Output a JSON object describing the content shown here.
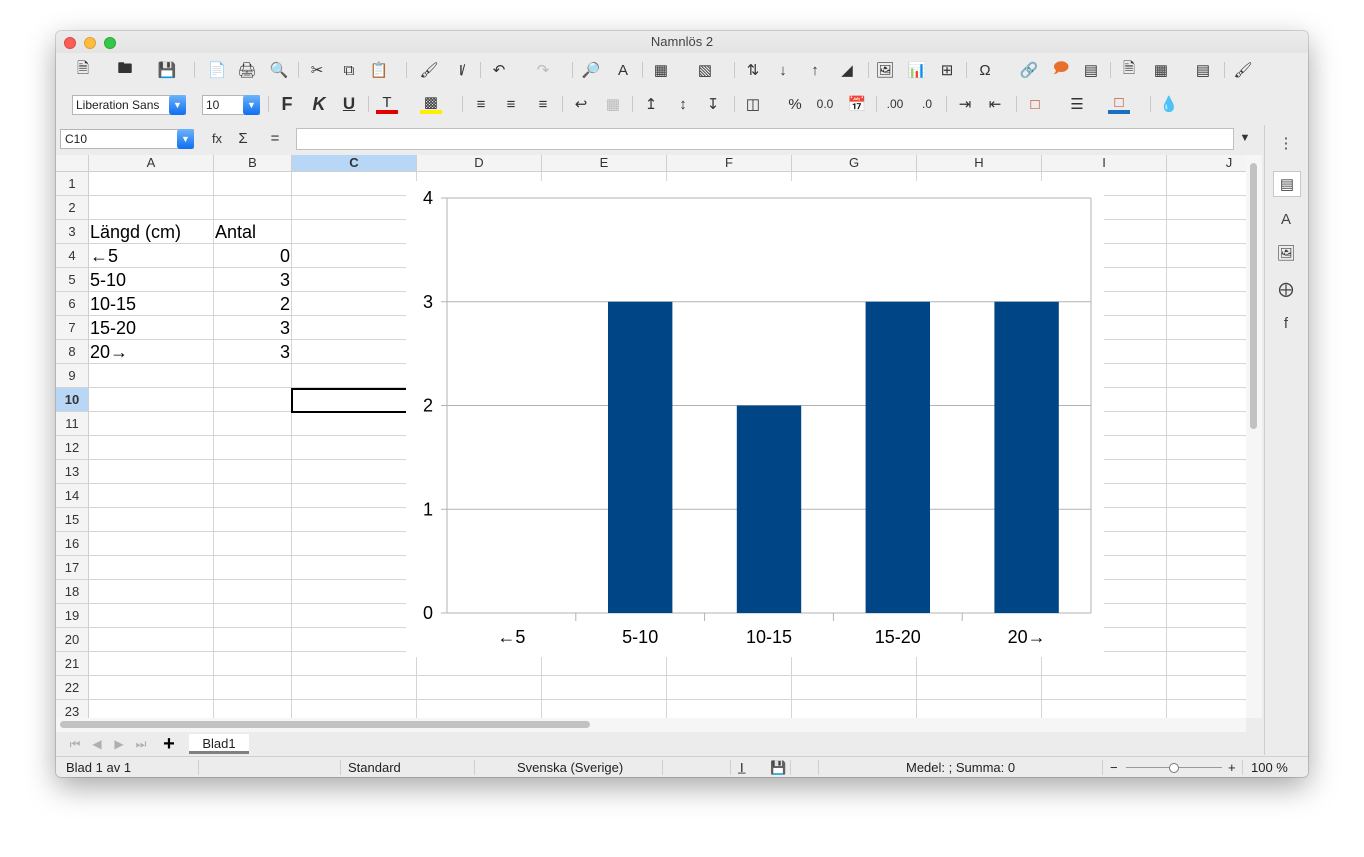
{
  "window": {
    "title": "Namnlös 2"
  },
  "toolbar2": {
    "font_name": "Liberation Sans",
    "font_size": "10",
    "bold_label": "F",
    "italic_label": "K",
    "underline_label": "U",
    "percent_label": "%",
    "decimal_label": "0.0",
    "add_decimal_label": ".00",
    "remove_decimal_label": ".0"
  },
  "formula_bar": {
    "name_box": "C10",
    "function_wizard": "fx",
    "sum_label": "Σ",
    "equals_label": "=",
    "formula": ""
  },
  "columns": [
    "A",
    "B",
    "C",
    "D",
    "E",
    "F",
    "G",
    "H",
    "I",
    "J"
  ],
  "selected_column": "C",
  "rows": [
    "1",
    "2",
    "3",
    "4",
    "5",
    "6",
    "7",
    "8",
    "9",
    "10",
    "11",
    "12",
    "13",
    "14",
    "15",
    "16",
    "17",
    "18",
    "19",
    "20",
    "21",
    "22",
    "23"
  ],
  "selected_row": "10",
  "cells": {
    "a3": "Längd (cm)",
    "b3": "Antal",
    "a4": "←5",
    "b4": "0",
    "a5": "5-10",
    "b5": "3",
    "a6": "10-15",
    "b6": "2",
    "a7": "15-20",
    "b7": "3",
    "a8": "20→",
    "b8": "3"
  },
  "chart_data": {
    "type": "bar",
    "title": "",
    "xlabel": "",
    "ylabel": "",
    "categories": [
      "←5",
      "5-10",
      "10-15",
      "15-20",
      "20→"
    ],
    "values": [
      0,
      3,
      2,
      3,
      3
    ],
    "ylim": [
      0,
      4
    ],
    "yticks": [
      "0",
      "1",
      "2",
      "3",
      "4"
    ],
    "grid": true,
    "legend": "none",
    "bar_color": "#004586"
  },
  "sheet_tabs": {
    "active": "Blad1",
    "add_label": "+"
  },
  "status": {
    "sheet_info": "Blad 1 av 1",
    "page_style": "Standard",
    "language": "Svenska (Sverige)",
    "selection_mode": "I̲",
    "summary": "Medel: ; Summa: 0",
    "zoom_minus": "−",
    "zoom_plus": "+",
    "zoom": "100 %"
  },
  "sidebar": {
    "menu_label": "⋮"
  },
  "colors": {
    "selection_header": "#b8d6f5",
    "bar": "#004586",
    "font_color": "#e00000",
    "highlight": "#ffee00"
  }
}
